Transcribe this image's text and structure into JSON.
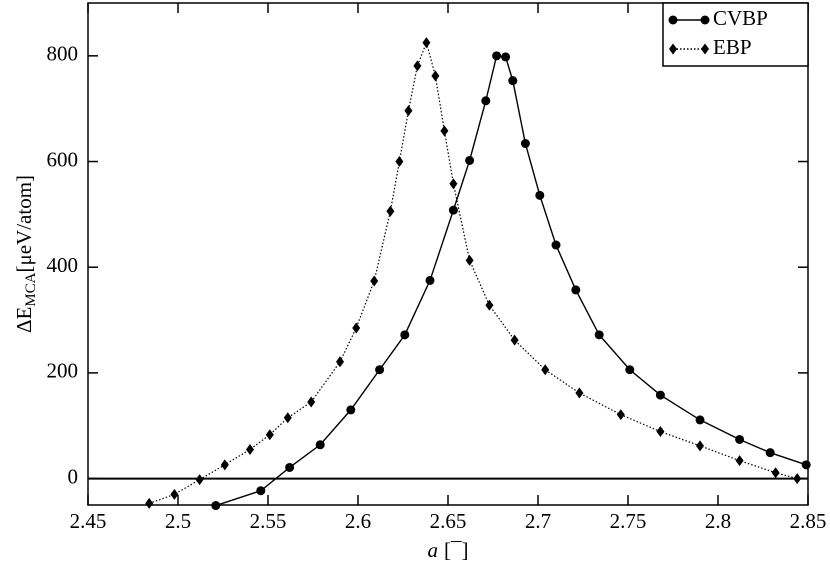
{
  "chart_data": {
    "type": "line",
    "xlabel": {
      "main": "a",
      "unit": "[¯]"
    },
    "ylabel": {
      "main": "ΔE",
      "sub": "MCA",
      "unit": "[μeV/atom]"
    },
    "xlim": [
      2.45,
      2.85
    ],
    "ylim": [
      -50,
      900
    ],
    "xticks": [
      {
        "value": 2.45,
        "label": "2.45"
      },
      {
        "value": 2.5,
        "label": "2.5"
      },
      {
        "value": 2.55,
        "label": "2.55"
      },
      {
        "value": 2.6,
        "label": "2.6"
      },
      {
        "value": 2.65,
        "label": "2.65"
      },
      {
        "value": 2.7,
        "label": "2.7"
      },
      {
        "value": 2.75,
        "label": "2.75"
      },
      {
        "value": 2.8,
        "label": "2.8"
      },
      {
        "value": 2.85,
        "label": "2.85"
      }
    ],
    "yticks": [
      0,
      200,
      400,
      600,
      800
    ],
    "zero_line": true,
    "legend": "upper right",
    "series": [
      {
        "name": "CVBP",
        "color": "#000000",
        "marker": "circle",
        "line_style": "solid",
        "x": [
          2.521,
          2.546,
          2.562,
          2.579,
          2.596,
          2.612,
          2.626,
          2.64,
          2.653,
          2.662,
          2.671,
          2.677,
          2.682,
          2.686,
          2.693,
          2.701,
          2.71,
          2.721,
          2.734,
          2.751,
          2.768,
          2.79,
          2.812,
          2.829,
          2.849
        ],
        "values": [
          -51,
          -23,
          21,
          64,
          130,
          206,
          272,
          375,
          508,
          602,
          715,
          800,
          798,
          753,
          634,
          536,
          442,
          357,
          272,
          206,
          158,
          111,
          74,
          49,
          26
        ]
      },
      {
        "name": "EBP",
        "color": "#000000",
        "marker": "diamond",
        "line_style": "dotted",
        "x": [
          2.484,
          2.498,
          2.512,
          2.526,
          2.54,
          2.551,
          2.561,
          2.574,
          2.59,
          2.599,
          2.609,
          2.618,
          2.623,
          2.628,
          2.633,
          2.638,
          2.643,
          2.648,
          2.653,
          2.662,
          2.673,
          2.687,
          2.704,
          2.723,
          2.746,
          2.768,
          2.79,
          2.812,
          2.832,
          2.844
        ],
        "values": [
          -47,
          -30,
          -2,
          26,
          55,
          83,
          115,
          145,
          221,
          285,
          374,
          506,
          600,
          696,
          781,
          825,
          762,
          658,
          558,
          413,
          328,
          262,
          206,
          162,
          121,
          89,
          62,
          34,
          11,
          0
        ]
      }
    ]
  }
}
